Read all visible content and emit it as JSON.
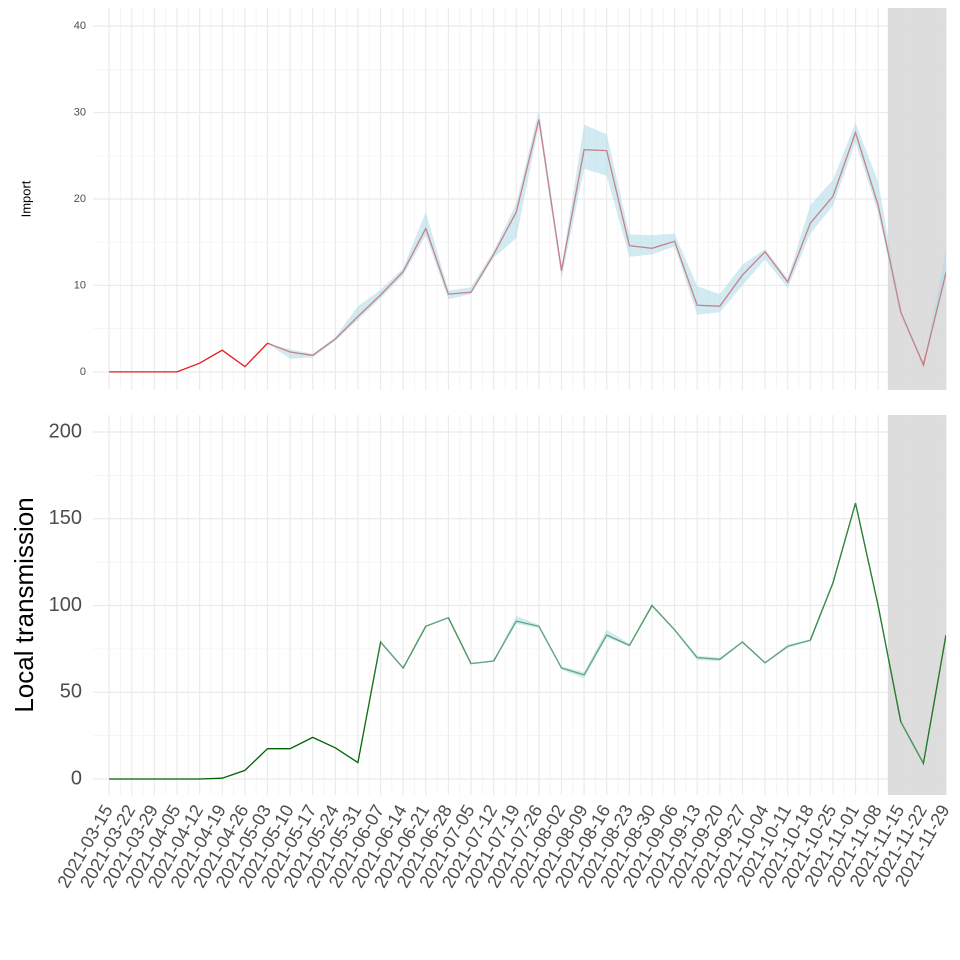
{
  "chart_data": [
    {
      "type": "line",
      "y_label": "Import",
      "grid": true,
      "xlim": [
        "2021-03-10",
        "2021-11-29"
      ],
      "x": [
        "2021-03-15",
        "2021-03-22",
        "2021-03-29",
        "2021-04-05",
        "2021-04-12",
        "2021-04-19",
        "2021-04-26",
        "2021-05-03",
        "2021-05-10",
        "2021-05-17",
        "2021-05-24",
        "2021-05-31",
        "2021-06-07",
        "2021-06-14",
        "2021-06-21",
        "2021-06-28",
        "2021-07-05",
        "2021-07-12",
        "2021-07-19",
        "2021-07-26",
        "2021-08-02",
        "2021-08-09",
        "2021-08-16",
        "2021-08-23",
        "2021-08-30",
        "2021-09-06",
        "2021-09-13",
        "2021-09-20",
        "2021-09-27",
        "2021-10-04",
        "2021-10-11",
        "2021-10-18",
        "2021-10-25",
        "2021-11-01",
        "2021-11-08",
        "2021-11-15",
        "2021-11-22",
        "2021-11-29"
      ],
      "ylim": [
        -2.1,
        42.1
      ],
      "yticks": [
        0,
        10,
        20,
        30,
        40
      ],
      "shade": {
        "xlim": [
          "2021-11-11",
          "2021-11-29"
        ],
        "color": "#d9d9d9"
      },
      "band_color": "#add8e6",
      "series": [
        {
          "color": "#e31a1c",
          "values": [
            0,
            0,
            0,
            0,
            1,
            2.5,
            0.6,
            3.3,
            2.3,
            1.9,
            3.8,
            6.4,
            8.9,
            11.6,
            16.6,
            9.0,
            9.2,
            13.6,
            18.5,
            29.2,
            11.7,
            25.7,
            25.6,
            14.6,
            14.3,
            15.1,
            7.7,
            7.6,
            11.2,
            13.9,
            10.4,
            17.2,
            20.3,
            27.7,
            19.3,
            6.9,
            0.8,
            11.5
          ],
          "lower": [
            0,
            0,
            0,
            0,
            1,
            2.5,
            0.6,
            3.3,
            1.5,
            1.7,
            3.6,
            6.0,
            8.5,
            11.2,
            15.8,
            8.4,
            9.0,
            13.2,
            15.5,
            28.5,
            10.8,
            23.5,
            22.7,
            13.3,
            13.6,
            14.5,
            6.6,
            6.9,
            10.0,
            13.0,
            9.7,
            16.0,
            19.2,
            26.6,
            18.4,
            6.5,
            0.6,
            10.8
          ],
          "upper": [
            0,
            0,
            0,
            0,
            1,
            2.5,
            0.6,
            3.3,
            2.6,
            2.1,
            4.0,
            7.6,
            9.5,
            12.0,
            18.5,
            9.4,
            9.8,
            14.0,
            19.5,
            30.3,
            12.2,
            28.6,
            27.5,
            15.9,
            15.8,
            16.0,
            9.9,
            9.0,
            12.4,
            14.2,
            10.8,
            19.3,
            22.2,
            28.8,
            22.0,
            7.2,
            1.0,
            14.2
          ]
        }
      ]
    },
    {
      "type": "line",
      "y_label": "Local transmission",
      "grid": true,
      "xlim": [
        "2021-03-10",
        "2021-11-29"
      ],
      "x": [
        "2021-03-15",
        "2021-03-22",
        "2021-03-29",
        "2021-04-05",
        "2021-04-12",
        "2021-04-19",
        "2021-04-26",
        "2021-05-03",
        "2021-05-10",
        "2021-05-17",
        "2021-05-24",
        "2021-05-31",
        "2021-06-07",
        "2021-06-14",
        "2021-06-21",
        "2021-06-28",
        "2021-07-05",
        "2021-07-12",
        "2021-07-19",
        "2021-07-26",
        "2021-08-02",
        "2021-08-09",
        "2021-08-16",
        "2021-08-23",
        "2021-08-30",
        "2021-09-06",
        "2021-09-13",
        "2021-09-20",
        "2021-09-27",
        "2021-10-04",
        "2021-10-11",
        "2021-10-18",
        "2021-10-25",
        "2021-11-01",
        "2021-11-08",
        "2021-11-15",
        "2021-11-22",
        "2021-11-29"
      ],
      "xticks": [
        "2021-03-15",
        "2021-03-22",
        "2021-03-29",
        "2021-04-05",
        "2021-04-12",
        "2021-04-19",
        "2021-04-26",
        "2021-05-03",
        "2021-05-10",
        "2021-05-17",
        "2021-05-24",
        "2021-05-31",
        "2021-06-07",
        "2021-06-14",
        "2021-06-21",
        "2021-06-28",
        "2021-07-05",
        "2021-07-12",
        "2021-07-19",
        "2021-07-26",
        "2021-08-02",
        "2021-08-09",
        "2021-08-16",
        "2021-08-23",
        "2021-08-30",
        "2021-09-06",
        "2021-09-13",
        "2021-09-20",
        "2021-09-27",
        "2021-10-04",
        "2021-10-11",
        "2021-10-18",
        "2021-10-25",
        "2021-11-01",
        "2021-11-08",
        "2021-11-15",
        "2021-11-22",
        "2021-11-29"
      ],
      "ylim": [
        -9.2,
        209.8
      ],
      "yticks": [
        0,
        50,
        100,
        150,
        200
      ],
      "shade": {
        "xlim": [
          "2021-11-11",
          "2021-11-29"
        ],
        "color": "#d9d9d9"
      },
      "band_color": "#add8e6",
      "series": [
        {
          "color": "#006400",
          "values": [
            0,
            0,
            0,
            0,
            0,
            0.5,
            5,
            17.5,
            17.5,
            24,
            18,
            9.5,
            79,
            64,
            88,
            93,
            66.5,
            68,
            91,
            88,
            64,
            60,
            83,
            77,
            100,
            86,
            70,
            69,
            79,
            67,
            76.5,
            80,
            113,
            159,
            100,
            33,
            9,
            83
          ],
          "lower": [
            0,
            0,
            0,
            0,
            0,
            0.5,
            5,
            17.5,
            17.5,
            24,
            18,
            9.5,
            78.5,
            63.5,
            87.5,
            92.5,
            66,
            67.5,
            89.5,
            87,
            63,
            58,
            81.5,
            76.5,
            99.5,
            85.5,
            68.5,
            68,
            78.5,
            66.5,
            75.5,
            79.5,
            112.5,
            158.5,
            99.5,
            32.5,
            8.5,
            82.5
          ],
          "upper": [
            0,
            0,
            0,
            0,
            0,
            0.5,
            5,
            17.5,
            17.5,
            24,
            18,
            9.5,
            79.5,
            64.5,
            88.5,
            93.5,
            67,
            68.5,
            94,
            89,
            65,
            61.5,
            86,
            78,
            100.5,
            86.5,
            71,
            70,
            79.5,
            67.5,
            77.5,
            80.5,
            113.5,
            159.5,
            100.5,
            33.5,
            9.5,
            83.5
          ]
        }
      ]
    }
  ]
}
